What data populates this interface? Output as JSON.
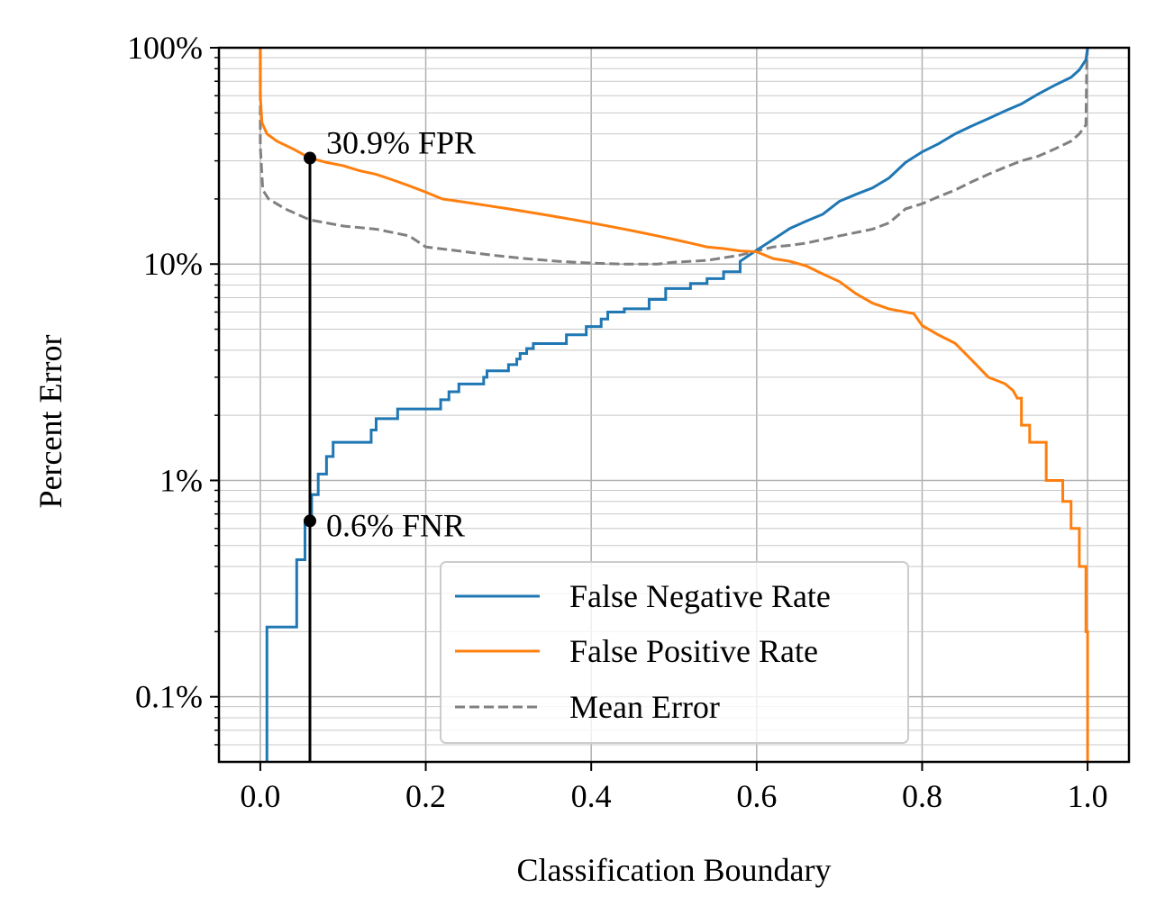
{
  "chart_data": {
    "type": "line",
    "title": "",
    "xlabel": "Classification Boundary",
    "ylabel": "Percent Error",
    "xlim": [
      -0.05,
      1.05
    ],
    "ylim": [
      0.05,
      100
    ],
    "yscale": "log",
    "grid": true,
    "xticks": [
      {
        "value": 0.0,
        "label": "0.0"
      },
      {
        "value": 0.2,
        "label": "0.2"
      },
      {
        "value": 0.4,
        "label": "0.4"
      },
      {
        "value": 0.6,
        "label": "0.6"
      },
      {
        "value": 0.8,
        "label": "0.8"
      },
      {
        "value": 1.0,
        "label": "1.0"
      }
    ],
    "yticks": [
      {
        "value": 0.1,
        "label": "0.1%"
      },
      {
        "value": 1,
        "label": "1%"
      },
      {
        "value": 10,
        "label": "10%"
      },
      {
        "value": 100,
        "label": "100%"
      }
    ],
    "legend_position": "lower-center",
    "series": [
      {
        "name": "False Negative Rate",
        "color": "#1f77b4",
        "dash": "solid",
        "points": [
          [
            0.008,
            0.05
          ],
          [
            0.008,
            0.21
          ],
          [
            0.044,
            0.21
          ],
          [
            0.044,
            0.43
          ],
          [
            0.054,
            0.43
          ],
          [
            0.054,
            0.64
          ],
          [
            0.062,
            0.64
          ],
          [
            0.062,
            0.86
          ],
          [
            0.07,
            0.86
          ],
          [
            0.07,
            1.07
          ],
          [
            0.08,
            1.07
          ],
          [
            0.08,
            1.29
          ],
          [
            0.088,
            1.29
          ],
          [
            0.088,
            1.5
          ],
          [
            0.134,
            1.5
          ],
          [
            0.134,
            1.71
          ],
          [
            0.14,
            1.71
          ],
          [
            0.14,
            1.93
          ],
          [
            0.166,
            1.93
          ],
          [
            0.166,
            2.14
          ],
          [
            0.218,
            2.14
          ],
          [
            0.218,
            2.36
          ],
          [
            0.228,
            2.36
          ],
          [
            0.228,
            2.57
          ],
          [
            0.24,
            2.57
          ],
          [
            0.24,
            2.79
          ],
          [
            0.27,
            2.79
          ],
          [
            0.27,
            3.0
          ],
          [
            0.274,
            3.0
          ],
          [
            0.274,
            3.21
          ],
          [
            0.3,
            3.21
          ],
          [
            0.3,
            3.43
          ],
          [
            0.31,
            3.43
          ],
          [
            0.31,
            3.64
          ],
          [
            0.314,
            3.64
          ],
          [
            0.314,
            3.86
          ],
          [
            0.322,
            3.86
          ],
          [
            0.322,
            4.07
          ],
          [
            0.33,
            4.07
          ],
          [
            0.33,
            4.29
          ],
          [
            0.37,
            4.29
          ],
          [
            0.37,
            4.71
          ],
          [
            0.394,
            4.71
          ],
          [
            0.394,
            5.14
          ],
          [
            0.412,
            5.14
          ],
          [
            0.412,
            5.57
          ],
          [
            0.42,
            5.57
          ],
          [
            0.42,
            6.0
          ],
          [
            0.44,
            6.0
          ],
          [
            0.44,
            6.21
          ],
          [
            0.47,
            6.21
          ],
          [
            0.47,
            6.86
          ],
          [
            0.49,
            6.86
          ],
          [
            0.49,
            7.71
          ],
          [
            0.52,
            7.71
          ],
          [
            0.52,
            8.14
          ],
          [
            0.54,
            8.14
          ],
          [
            0.54,
            8.57
          ],
          [
            0.56,
            8.57
          ],
          [
            0.56,
            9.21
          ],
          [
            0.58,
            9.21
          ],
          [
            0.58,
            10.3
          ],
          [
            0.6,
            11.6
          ],
          [
            0.62,
            13.0
          ],
          [
            0.64,
            14.6
          ],
          [
            0.66,
            15.8
          ],
          [
            0.68,
            17.0
          ],
          [
            0.7,
            19.5
          ],
          [
            0.72,
            21.0
          ],
          [
            0.74,
            22.5
          ],
          [
            0.76,
            25.0
          ],
          [
            0.78,
            29.5
          ],
          [
            0.8,
            33.0
          ],
          [
            0.82,
            36.0
          ],
          [
            0.84,
            40.0
          ],
          [
            0.86,
            43.5
          ],
          [
            0.88,
            47.0
          ],
          [
            0.9,
            51.0
          ],
          [
            0.92,
            55.0
          ],
          [
            0.94,
            61.0
          ],
          [
            0.96,
            67.0
          ],
          [
            0.98,
            73.0
          ],
          [
            0.99,
            79.0
          ],
          [
            0.998,
            88.0
          ],
          [
            1.0,
            100.0
          ]
        ]
      },
      {
        "name": "False Positive Rate",
        "color": "#ff7f0e",
        "dash": "solid",
        "points": [
          [
            0.0,
            100.0
          ],
          [
            0.0,
            60.0
          ],
          [
            0.002,
            45.0
          ],
          [
            0.008,
            40.0
          ],
          [
            0.02,
            37.0
          ],
          [
            0.04,
            34.0
          ],
          [
            0.06,
            30.9
          ],
          [
            0.08,
            29.5
          ],
          [
            0.1,
            28.5
          ],
          [
            0.12,
            27.0
          ],
          [
            0.14,
            26.0
          ],
          [
            0.16,
            24.5
          ],
          [
            0.18,
            23.0
          ],
          [
            0.2,
            21.5
          ],
          [
            0.22,
            20.0
          ],
          [
            0.24,
            19.5
          ],
          [
            0.26,
            19.0
          ],
          [
            0.28,
            18.5
          ],
          [
            0.3,
            18.0
          ],
          [
            0.32,
            17.5
          ],
          [
            0.34,
            17.0
          ],
          [
            0.36,
            16.5
          ],
          [
            0.38,
            16.0
          ],
          [
            0.4,
            15.5
          ],
          [
            0.42,
            15.0
          ],
          [
            0.44,
            14.5
          ],
          [
            0.46,
            14.0
          ],
          [
            0.48,
            13.5
          ],
          [
            0.5,
            13.0
          ],
          [
            0.52,
            12.5
          ],
          [
            0.54,
            12.0
          ],
          [
            0.56,
            11.8
          ],
          [
            0.58,
            11.5
          ],
          [
            0.6,
            11.4
          ],
          [
            0.62,
            10.6
          ],
          [
            0.64,
            10.3
          ],
          [
            0.66,
            9.8
          ],
          [
            0.68,
            9.0
          ],
          [
            0.7,
            8.3
          ],
          [
            0.72,
            7.3
          ],
          [
            0.74,
            6.6
          ],
          [
            0.76,
            6.2
          ],
          [
            0.78,
            6.0
          ],
          [
            0.79,
            5.9
          ],
          [
            0.8,
            5.2
          ],
          [
            0.82,
            4.7
          ],
          [
            0.84,
            4.3
          ],
          [
            0.86,
            3.6
          ],
          [
            0.88,
            3.0
          ],
          [
            0.9,
            2.8
          ],
          [
            0.91,
            2.6
          ],
          [
            0.915,
            2.4
          ],
          [
            0.92,
            2.4
          ],
          [
            0.92,
            1.8
          ],
          [
            0.93,
            1.8
          ],
          [
            0.93,
            1.5
          ],
          [
            0.95,
            1.5
          ],
          [
            0.95,
            1.0
          ],
          [
            0.97,
            1.0
          ],
          [
            0.97,
            0.8
          ],
          [
            0.98,
            0.8
          ],
          [
            0.98,
            0.6
          ],
          [
            0.99,
            0.6
          ],
          [
            0.99,
            0.4
          ],
          [
            0.998,
            0.4
          ],
          [
            0.998,
            0.2
          ],
          [
            1.0,
            0.2
          ],
          [
            1.0,
            0.05
          ]
        ]
      },
      {
        "name": "Mean Error",
        "color": "#808080",
        "dash": "dashed",
        "points": [
          [
            0.0,
            100.0
          ],
          [
            0.0,
            35.0
          ],
          [
            0.003,
            22.0
          ],
          [
            0.01,
            20.0
          ],
          [
            0.03,
            18.0
          ],
          [
            0.06,
            16.0
          ],
          [
            0.1,
            15.0
          ],
          [
            0.14,
            14.5
          ],
          [
            0.18,
            13.5
          ],
          [
            0.2,
            12.0
          ],
          [
            0.24,
            11.5
          ],
          [
            0.28,
            11.0
          ],
          [
            0.32,
            10.6
          ],
          [
            0.36,
            10.3
          ],
          [
            0.4,
            10.1
          ],
          [
            0.44,
            10.0
          ],
          [
            0.48,
            10.0
          ],
          [
            0.5,
            10.2
          ],
          [
            0.54,
            10.4
          ],
          [
            0.58,
            11.0
          ],
          [
            0.6,
            11.5
          ],
          [
            0.62,
            12.0
          ],
          [
            0.64,
            12.2
          ],
          [
            0.66,
            12.5
          ],
          [
            0.7,
            13.5
          ],
          [
            0.74,
            14.5
          ],
          [
            0.76,
            15.5
          ],
          [
            0.78,
            18.0
          ],
          [
            0.8,
            19.0
          ],
          [
            0.82,
            20.5
          ],
          [
            0.84,
            22.0
          ],
          [
            0.86,
            24.0
          ],
          [
            0.88,
            26.0
          ],
          [
            0.9,
            28.0
          ],
          [
            0.92,
            30.0
          ],
          [
            0.94,
            31.5
          ],
          [
            0.96,
            34.0
          ],
          [
            0.98,
            37.0
          ],
          [
            0.99,
            40.0
          ],
          [
            0.998,
            44.0
          ],
          [
            0.999,
            85.0
          ],
          [
            1.0,
            100.0
          ]
        ]
      }
    ],
    "marker": {
      "x": 0.06,
      "points": [
        {
          "y": 30.9,
          "label": "30.9% FPR"
        },
        {
          "y": 0.65,
          "label": "0.6% FNR"
        }
      ]
    }
  }
}
